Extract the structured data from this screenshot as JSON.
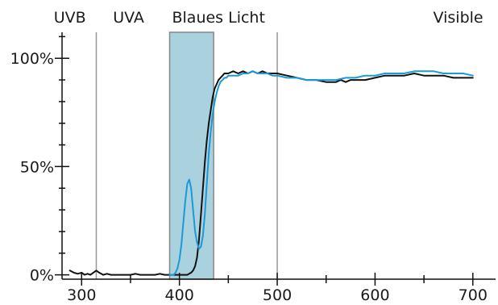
{
  "chart_data": {
    "type": "line",
    "title": "",
    "xlabel": "",
    "ylabel": "",
    "xlim": [
      280,
      715
    ],
    "ylim": [
      -2,
      112
    ],
    "x_ticks": [
      300,
      400,
      500,
      600,
      700
    ],
    "y_ticks": [
      {
        "value": 0,
        "label": "0%"
      },
      {
        "value": 50,
        "label": "50%"
      },
      {
        "value": 100,
        "label": "100%"
      }
    ],
    "band_labels": [
      {
        "text": "UVB",
        "x": 288
      },
      {
        "text": "UVA",
        "x": 348
      },
      {
        "text": "Blaues Licht",
        "x": 440
      },
      {
        "text": "Visible",
        "x": 685
      }
    ],
    "dividers": [
      315,
      500
    ],
    "highlight_band": {
      "from": 390,
      "to": 435,
      "color": "#a9d1de"
    },
    "colors": {
      "black_series": "#111111",
      "blue_series": "#1a9ad6",
      "divider": "#999999",
      "axis": "#111111"
    },
    "series": [
      {
        "color": "#111111",
        "x": [
          288,
          292,
          296,
          300,
          303,
          306,
          309,
          312,
          315,
          318,
          322,
          326,
          330,
          335,
          340,
          345,
          350,
          355,
          360,
          365,
          370,
          375,
          380,
          385,
          390,
          395,
          400,
          405,
          408,
          410,
          412,
          414,
          416,
          418,
          420,
          422,
          424,
          426,
          428,
          430,
          432,
          434,
          436,
          438,
          440,
          442,
          444,
          446,
          448,
          450,
          455,
          460,
          465,
          470,
          475,
          480,
          485,
          490,
          495,
          500,
          510,
          520,
          530,
          540,
          550,
          560,
          565,
          570,
          575,
          580,
          590,
          600,
          610,
          620,
          630,
          640,
          650,
          660,
          670,
          680,
          690,
          700
        ],
        "y": [
          2,
          1,
          0.5,
          1,
          0,
          0.5,
          0,
          1,
          2,
          1,
          0,
          0.5,
          0,
          0,
          0,
          0,
          0,
          0.5,
          0,
          0,
          0,
          0,
          0.5,
          0,
          0,
          0,
          0,
          0,
          0,
          0.5,
          1,
          2,
          4,
          8,
          16,
          28,
          40,
          52,
          62,
          70,
          76,
          82,
          86,
          88,
          90,
          91,
          92,
          93,
          93,
          93,
          94,
          93,
          94,
          93,
          94,
          93,
          94,
          93,
          93,
          93,
          92,
          91,
          90,
          90,
          89,
          89,
          90,
          89,
          90,
          90,
          90,
          91,
          92,
          92,
          92,
          93,
          92,
          92,
          92,
          91,
          91,
          91
        ]
      },
      {
        "color": "#1a9ad6",
        "x": [
          390,
          392,
          394,
          396,
          398,
          400,
          402,
          404,
          406,
          408,
          410,
          412,
          414,
          416,
          418,
          420,
          422,
          424,
          426,
          428,
          430,
          432,
          434,
          436,
          438,
          440,
          442,
          444,
          446,
          448,
          450,
          455,
          460,
          465,
          470,
          475,
          480,
          485,
          490,
          495,
          500,
          510,
          520,
          530,
          540,
          550,
          560,
          570,
          580,
          590,
          600,
          610,
          620,
          630,
          640,
          650,
          660,
          670,
          680,
          690,
          700
        ],
        "y": [
          0,
          0,
          0,
          1,
          3,
          7,
          14,
          24,
          34,
          42,
          44,
          40,
          30,
          20,
          15,
          12,
          13,
          18,
          28,
          42,
          56,
          66,
          74,
          80,
          84,
          87,
          89,
          90,
          91,
          91,
          92,
          92,
          92,
          93,
          93,
          94,
          93,
          93,
          93,
          92,
          92,
          91,
          91,
          90,
          90,
          90,
          90,
          91,
          91,
          92,
          92,
          93,
          93,
          93,
          94,
          94,
          94,
          93,
          93,
          93,
          92
        ]
      }
    ]
  }
}
